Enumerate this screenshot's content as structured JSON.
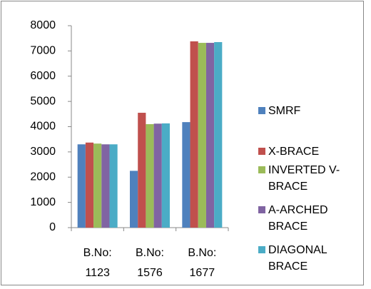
{
  "chart_data": {
    "type": "bar",
    "categories": [
      "B.No: 1123",
      "B.No: 1576",
      "B.No: 1677"
    ],
    "series": [
      {
        "name": "SMRF",
        "color": "#4f81bd",
        "values": [
          3300,
          2250,
          4180
        ]
      },
      {
        "name": "X-BRACE",
        "color": "#c0504d",
        "values": [
          3370,
          4550,
          7380
        ]
      },
      {
        "name": "INVERTED V-BRACE",
        "color": "#9bbb59",
        "values": [
          3330,
          4100,
          7320
        ]
      },
      {
        "name": "A-ARCHED BRACE",
        "color": "#8064a2",
        "values": [
          3300,
          4120,
          7320
        ]
      },
      {
        "name": "DIAGONAL BRACE",
        "color": "#4bacc6",
        "values": [
          3300,
          4130,
          7350
        ]
      }
    ],
    "ylim": [
      0,
      8000
    ],
    "yticks": [
      0,
      1000,
      2000,
      3000,
      4000,
      5000,
      6000,
      7000,
      8000
    ],
    "grid": false,
    "legend": "right"
  }
}
